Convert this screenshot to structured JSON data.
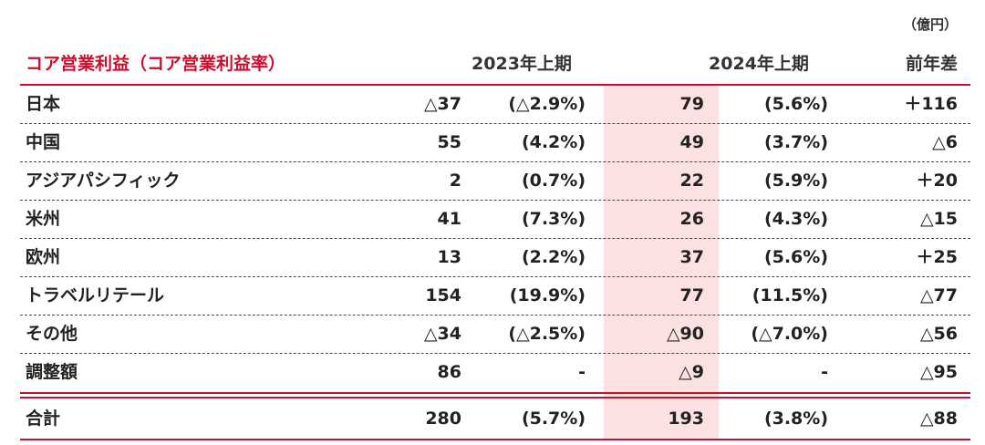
{
  "unit": "（億円）",
  "header": {
    "title": "コア営業利益（コア営業利益率）",
    "col1": "2023年上期",
    "col2": "2024年上期",
    "col3": "前年差"
  },
  "rows": [
    {
      "label": "日本",
      "v2023": "△37",
      "p2023": "(△2.9%)",
      "v2024": "79",
      "p2024": "(5.6%)",
      "diff": "＋116"
    },
    {
      "label": "中国",
      "v2023": "55",
      "p2023": "(4.2%)",
      "v2024": "49",
      "p2024": "(3.7%)",
      "diff": "△6"
    },
    {
      "label": "アジアパシフィック",
      "v2023": "2",
      "p2023": "(0.7%)",
      "v2024": "22",
      "p2024": "(5.9%)",
      "diff": "＋20"
    },
    {
      "label": "米州",
      "v2023": "41",
      "p2023": "(7.3%)",
      "v2024": "26",
      "p2024": "(4.3%)",
      "diff": "△15"
    },
    {
      "label": "欧州",
      "v2023": "13",
      "p2023": "(2.2%)",
      "v2024": "37",
      "p2024": "(5.6%)",
      "diff": "＋25"
    },
    {
      "label": "トラベルリテール",
      "v2023": "154",
      "p2023": "(19.9%)",
      "v2024": "77",
      "p2024": "(11.5%)",
      "diff": "△77"
    },
    {
      "label": "その他",
      "v2023": "△34",
      "p2023": "(△2.5%)",
      "v2024": "△90",
      "p2024": "(△7.0%)",
      "diff": "△56"
    },
    {
      "label": "調整額",
      "v2023": "86",
      "p2023": "-",
      "v2024": "△9",
      "p2024": "-",
      "diff": "△95"
    }
  ],
  "total": {
    "label": "合計",
    "v2023": "280",
    "p2023": "(5.7%)",
    "v2024": "193",
    "p2024": "(3.8%)",
    "diff": "△88"
  }
}
